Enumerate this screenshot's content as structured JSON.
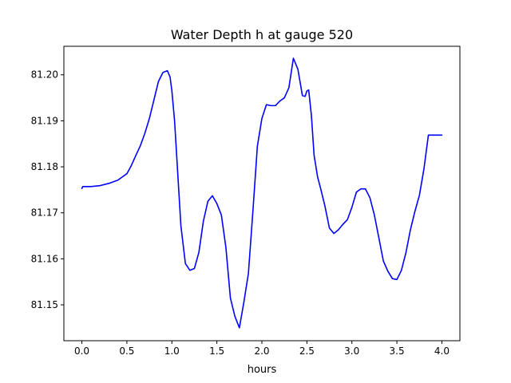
{
  "chart_data": {
    "type": "line",
    "title": "Water Depth h at gauge 520",
    "xlabel": "hours",
    "ylabel": "",
    "xlim": [
      -0.2,
      4.2
    ],
    "ylim": [
      81.1422,
      81.2062
    ],
    "xticks": [
      0.0,
      0.5,
      1.0,
      1.5,
      2.0,
      2.5,
      3.0,
      3.5,
      4.0
    ],
    "xtick_labels": [
      "0.0",
      "0.5",
      "1.0",
      "1.5",
      "2.0",
      "2.5",
      "3.0",
      "3.5",
      "4.0"
    ],
    "yticks": [
      81.15,
      81.16,
      81.17,
      81.18,
      81.19,
      81.2
    ],
    "ytick_labels": [
      "81.15",
      "81.16",
      "81.17",
      "81.18",
      "81.19",
      "81.20"
    ],
    "grid": false,
    "series": [
      {
        "color": "#0000ff",
        "x": [
          0.0,
          0.01,
          0.1,
          0.2,
          0.3,
          0.4,
          0.5,
          0.55,
          0.6,
          0.65,
          0.7,
          0.75,
          0.8,
          0.85,
          0.9,
          0.95,
          0.98,
          1.0,
          1.03,
          1.07,
          1.1,
          1.15,
          1.2,
          1.25,
          1.3,
          1.35,
          1.4,
          1.45,
          1.5,
          1.55,
          1.6,
          1.65,
          1.7,
          1.75,
          1.8,
          1.85,
          1.9,
          1.95,
          2.0,
          2.05,
          2.1,
          2.15,
          2.2,
          2.25,
          2.3,
          2.35,
          2.4,
          2.45,
          2.48,
          2.5,
          2.52,
          2.55,
          2.58,
          2.62,
          2.65,
          2.7,
          2.75,
          2.8,
          2.85,
          2.9,
          2.95,
          3.0,
          3.05,
          3.1,
          3.15,
          3.2,
          3.25,
          3.3,
          3.35,
          3.4,
          3.45,
          3.5,
          3.55,
          3.6,
          3.65,
          3.7,
          3.75,
          3.8,
          3.85,
          3.9,
          3.95,
          4.0
        ],
        "y": [
          81.1753,
          81.1757,
          81.1757,
          81.1759,
          81.1764,
          81.1771,
          81.1785,
          81.1803,
          81.1825,
          81.1846,
          81.1873,
          81.1905,
          81.1945,
          81.1985,
          81.2005,
          81.2009,
          81.1995,
          81.1965,
          81.19,
          81.177,
          81.1672,
          81.159,
          81.1575,
          81.1579,
          81.1614,
          81.1682,
          81.1725,
          81.1737,
          81.172,
          81.1695,
          81.1625,
          81.1515,
          81.1475,
          81.145,
          81.1506,
          81.1568,
          81.1703,
          81.1845,
          81.1905,
          81.1935,
          81.1933,
          81.1933,
          81.1943,
          81.195,
          81.1972,
          81.2036,
          81.2012,
          81.1955,
          81.1953,
          81.1965,
          81.1967,
          81.1912,
          81.1825,
          81.1777,
          81.1755,
          81.1715,
          81.1667,
          81.1655,
          81.1663,
          81.1675,
          81.1685,
          81.1712,
          81.1745,
          81.1752,
          81.1752,
          81.1733,
          81.1695,
          81.1645,
          81.1595,
          81.1573,
          81.1557,
          81.1555,
          81.1575,
          81.1613,
          81.1663,
          81.1703,
          81.1738,
          81.1795,
          81.1869,
          81.1869,
          81.1869,
          81.1869
        ]
      }
    ]
  }
}
